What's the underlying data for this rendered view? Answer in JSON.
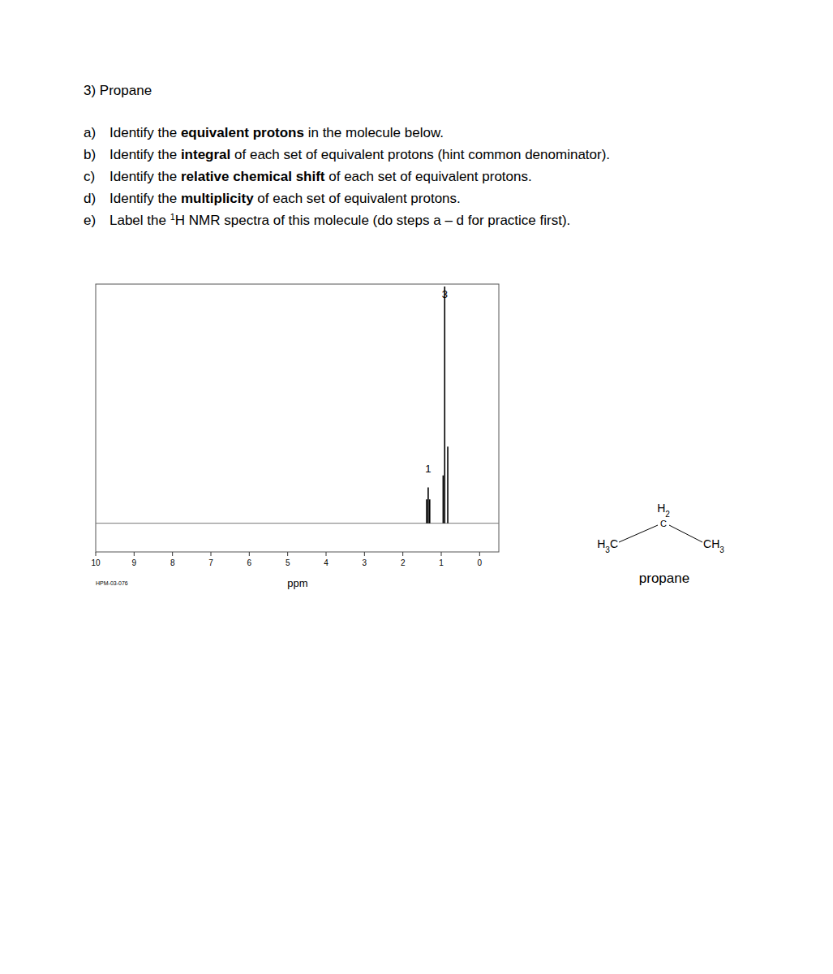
{
  "document": {
    "title": "3) Propane",
    "questions": [
      {
        "letter": "a)",
        "parts": [
          {
            "text": "Identify the "
          },
          {
            "text": "equivalent protons",
            "bold": true
          },
          {
            "text": " in the molecule below."
          }
        ]
      },
      {
        "letter": "b)",
        "parts": [
          {
            "text": "Identify the "
          },
          {
            "text": "integral",
            "bold": true
          },
          {
            "text": " of each set of equivalent protons (hint common denominator)."
          }
        ]
      },
      {
        "letter": "c)",
        "parts": [
          {
            "text": "Identify the "
          },
          {
            "text": "relative chemical shift",
            "bold": true
          },
          {
            "text": " of each set of equivalent protons."
          }
        ]
      },
      {
        "letter": "d)",
        "parts": [
          {
            "text": "Identify the "
          },
          {
            "text": "multiplicity",
            "bold": true
          },
          {
            "text": " of each set of equivalent protons."
          }
        ]
      },
      {
        "letter": "e)",
        "parts": [
          {
            "text": "Label the "
          },
          {
            "text": "1",
            "sup": true
          },
          {
            "text": "H NMR spectra of this molecule (do steps a – d for practice first)."
          }
        ]
      }
    ],
    "structure": {
      "left": "H3C",
      "center": "C",
      "center_h": "H2",
      "right": "CH3",
      "name": "propane"
    }
  },
  "chart_data": {
    "type": "spectrum",
    "x_label": "ppm",
    "caption": "HPM-03-076",
    "xlim": [
      10,
      -0.5
    ],
    "xticks": [
      10,
      9,
      8,
      7,
      6,
      5,
      4,
      3,
      2,
      1,
      0
    ],
    "ylim": [
      -12,
      100
    ],
    "tick_labels": "x",
    "color": "#000000",
    "x": [
      1.38,
      1.34,
      1.3,
      0.95,
      0.91,
      0.83
    ],
    "values": [
      10,
      15,
      10,
      20,
      99,
      32
    ],
    "annotations": [
      {
        "text": "3",
        "x": 0.91,
        "y": 96
      },
      {
        "text": "1",
        "x": 1.34,
        "y": 23
      }
    ]
  }
}
